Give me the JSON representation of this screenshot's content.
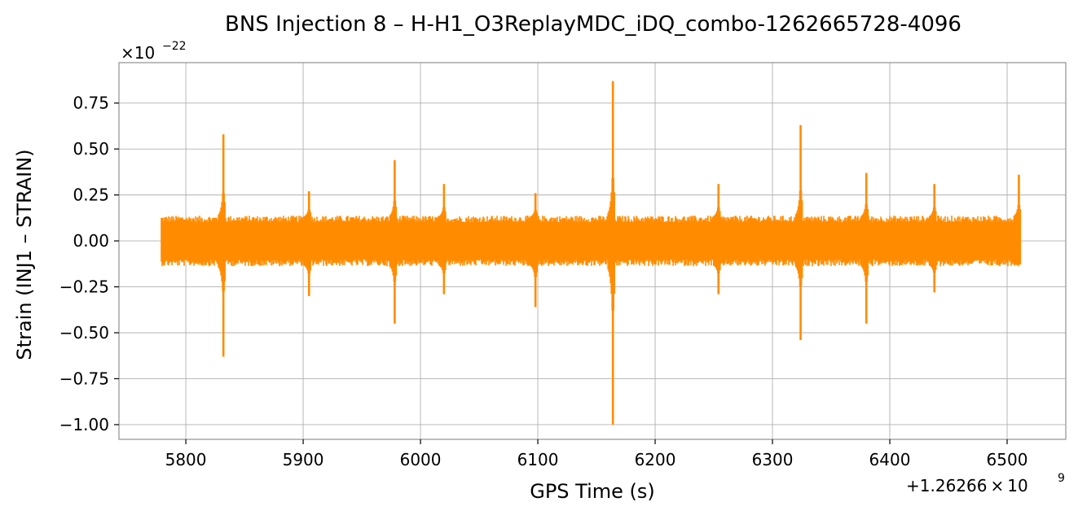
{
  "chart_data": {
    "type": "line",
    "title": "BNS Injection 8 – H-H1_O3ReplayMDC_iDQ_combo-1262665728-4096",
    "xlabel": "GPS Time (s)",
    "ylabel": "Strain (INJ1 – STRAIN)",
    "x_offset_text": "+1.26266",
    "x_offset_times": "×",
    "x_offset_base": "10",
    "x_offset_exp": "9",
    "y_scale_times": "×",
    "y_scale_base": "10",
    "y_scale_exp": "−22",
    "xlim": [
      5743,
      6550
    ],
    "ylim": [
      -1.08,
      0.97
    ],
    "x_ticks": [
      5800,
      5900,
      6000,
      6100,
      6200,
      6300,
      6400,
      6500
    ],
    "x_tick_labels": [
      "5800",
      "5900",
      "6000",
      "6100",
      "6200",
      "6300",
      "6400",
      "6500"
    ],
    "y_ticks": [
      -1.0,
      -0.75,
      -0.5,
      -0.25,
      0.0,
      0.25,
      0.5,
      0.75
    ],
    "y_tick_labels": [
      "−1.00",
      "−0.75",
      "−0.50",
      "−0.25",
      "0.00",
      "0.25",
      "0.50",
      "0.75"
    ],
    "grid": true,
    "legend": "none",
    "line_color": "#ff8c00",
    "series": [
      {
        "x_range": [
          5779,
          6511
        ],
        "noise_band": [
          -0.13,
          0.13
        ],
        "spikes": [
          {
            "x": 5832,
            "max": 0.58,
            "min": -0.63
          },
          {
            "x": 5905,
            "max": 0.27,
            "min": -0.3
          },
          {
            "x": 5978,
            "max": 0.44,
            "min": -0.45
          },
          {
            "x": 6020,
            "max": 0.31,
            "min": -0.29
          },
          {
            "x": 6098,
            "max": 0.26,
            "min": -0.36
          },
          {
            "x": 6164,
            "max": 0.87,
            "min": -1.0
          },
          {
            "x": 6254,
            "max": 0.31,
            "min": -0.29
          },
          {
            "x": 6324,
            "max": 0.63,
            "min": -0.54
          },
          {
            "x": 6380,
            "max": 0.37,
            "min": -0.45
          },
          {
            "x": 6438,
            "max": 0.31,
            "min": -0.28
          },
          {
            "x": 6510,
            "max": 0.36,
            "min": -0.12
          }
        ]
      }
    ]
  }
}
